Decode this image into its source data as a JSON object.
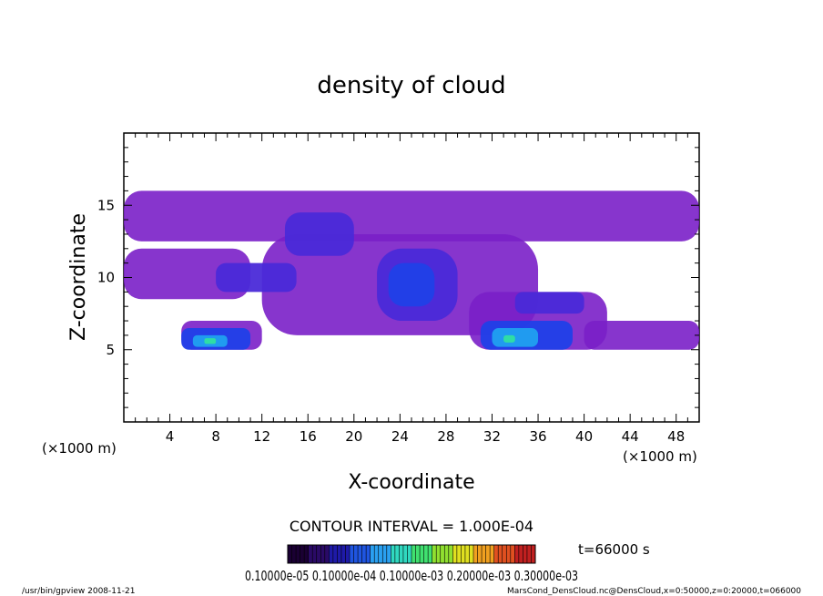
{
  "chart_data": {
    "type": "heatmap",
    "title": "density of cloud",
    "xlabel": "X-coordinate",
    "ylabel": "Z-coordinate",
    "x_unit": "(×1000 m)",
    "y_unit": "(×1000 m)",
    "xlim": [
      0,
      50
    ],
    "ylim": [
      0,
      20
    ],
    "x_ticks": [
      "4",
      "8",
      "12",
      "16",
      "20",
      "24",
      "28",
      "32",
      "36",
      "40",
      "44",
      "48"
    ],
    "y_ticks": [
      "5",
      "10",
      "15"
    ],
    "contour_interval": "CONTOUR INTERVAL = 1.000E-04",
    "time_label": "t=66000 s",
    "colorbar_labels": "0.10000e-05 0.10000e-04 0.10000e-03 0.20000e-03 0.30000e-03",
    "colorbar_colors": [
      "#1a0033",
      "#2a0a66",
      "#1e1aa8",
      "#1f55e0",
      "#2aa0f0",
      "#30d8c0",
      "#40e070",
      "#90e030",
      "#e0e020",
      "#f0a020",
      "#e05020",
      "#c02020"
    ],
    "cloud_colors": {
      "low": "#7a1fc8",
      "mid": "#4a2ad8",
      "high": "#2040e8",
      "peak": "#20a0f0",
      "max": "#30e0a0"
    },
    "footer_left": "/usr/bin/gpview   2008-11-21",
    "footer_right": "MarsCond_DensCloud.nc@DensCloud,x=0:50000,z=0:20000,t=066000",
    "regions": [
      {
        "level": "low",
        "x0": 0,
        "x1": 50,
        "z0": 12.5,
        "z1": 16
      },
      {
        "level": "low",
        "x0": 0,
        "x1": 11,
        "z0": 8.5,
        "z1": 12
      },
      {
        "level": "low",
        "x0": 12,
        "x1": 36,
        "z0": 6,
        "z1": 13
      },
      {
        "level": "low",
        "x0": 30,
        "x1": 42,
        "z0": 5,
        "z1": 9
      },
      {
        "level": "low",
        "x0": 5,
        "x1": 12,
        "z0": 5,
        "z1": 7
      },
      {
        "level": "low",
        "x0": 40,
        "x1": 50,
        "z0": 5,
        "z1": 7
      },
      {
        "level": "mid",
        "x0": 14,
        "x1": 20,
        "z0": 11.5,
        "z1": 14.5
      },
      {
        "level": "mid",
        "x0": 8,
        "x1": 15,
        "z0": 9,
        "z1": 11
      },
      {
        "level": "mid",
        "x0": 22,
        "x1": 29,
        "z0": 7,
        "z1": 12
      },
      {
        "level": "mid",
        "x0": 34,
        "x1": 40,
        "z0": 7.5,
        "z1": 9
      },
      {
        "level": "high",
        "x0": 23,
        "x1": 27,
        "z0": 8,
        "z1": 11
      },
      {
        "level": "high",
        "x0": 5,
        "x1": 11,
        "z0": 5,
        "z1": 6.5
      },
      {
        "level": "high",
        "x0": 31,
        "x1": 39,
        "z0": 5,
        "z1": 7
      },
      {
        "level": "peak",
        "x0": 6,
        "x1": 9,
        "z0": 5.2,
        "z1": 6
      },
      {
        "level": "peak",
        "x0": 32,
        "x1": 36,
        "z0": 5.2,
        "z1": 6.5
      },
      {
        "level": "max",
        "x0": 7,
        "x1": 8,
        "z0": 5.4,
        "z1": 5.8
      },
      {
        "level": "max",
        "x0": 33,
        "x1": 34,
        "z0": 5.5,
        "z1": 6
      }
    ]
  }
}
